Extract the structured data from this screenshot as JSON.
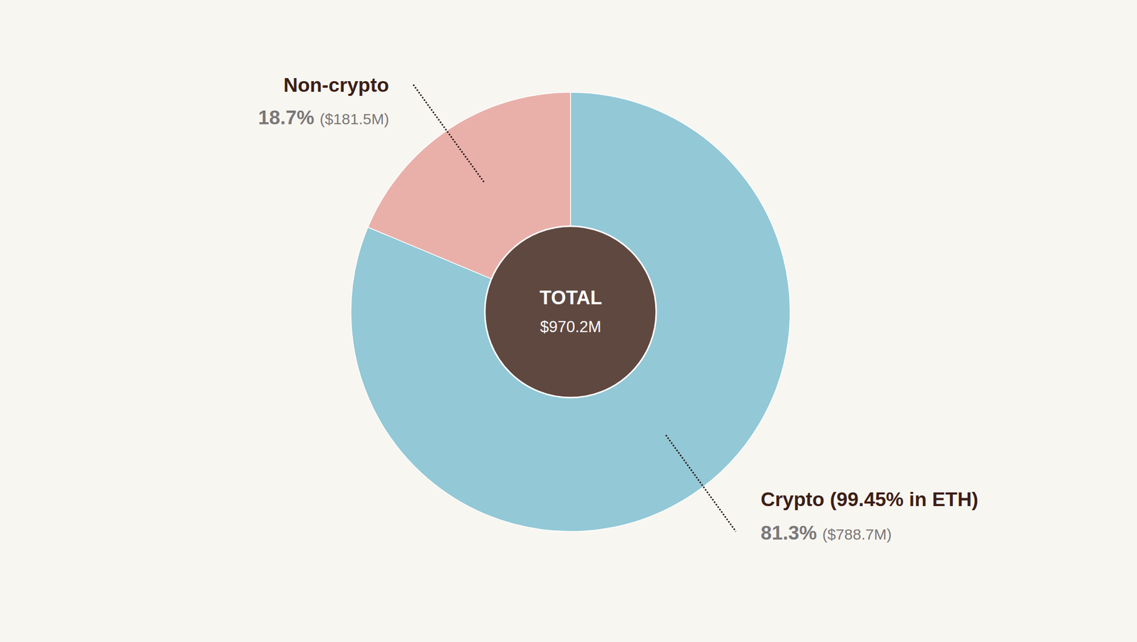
{
  "chart_data": {
    "type": "pie",
    "categories": [
      "Crypto (99.45% in ETH)",
      "Non-crypto"
    ],
    "values": [
      81.3,
      18.7
    ],
    "value_labels": [
      "81.3%",
      "18.7%"
    ],
    "amounts": [
      788.7,
      181.5
    ],
    "amount_labels": [
      "$788.7M",
      "$181.5M"
    ],
    "colors": [
      "#93c8d6",
      "#e9b0aa"
    ],
    "total": {
      "label": "TOTAL",
      "value": 970.2,
      "value_label": "$970.2M"
    },
    "data_labels": true
  }
}
